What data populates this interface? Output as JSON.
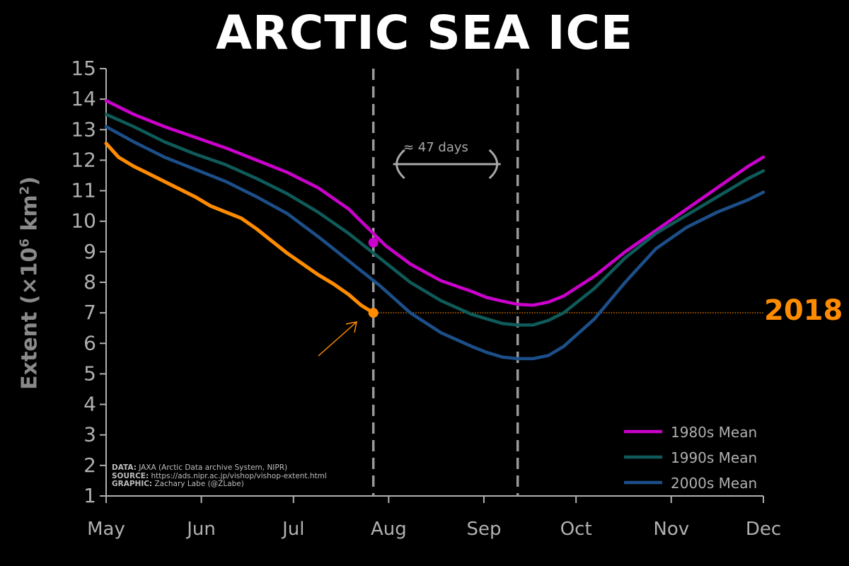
{
  "title": "ARCTIC SEA ICE",
  "chart_data": {
    "type": "line",
    "xlabel": "",
    "ylabel_text": "Extent (",
    "ylabel_unit": "×10",
    "ylabel_exp": "6",
    "ylabel_unit2": " km",
    "ylabel_exp2": "2",
    "ylabel_close": ")",
    "ylim": [
      1,
      15
    ],
    "yticks": [
      1,
      2,
      3,
      4,
      5,
      6,
      7,
      8,
      9,
      10,
      11,
      12,
      13,
      14,
      15
    ],
    "months": [
      "May",
      "Jun",
      "Jul",
      "Aug",
      "Sep",
      "Oct",
      "Nov",
      "Dec"
    ],
    "x_unit": "day of year",
    "xlim": [
      121,
      335
    ],
    "month_starts": [
      121,
      152,
      182,
      213,
      244,
      274,
      305,
      335
    ],
    "series": [
      {
        "name": "1980s Mean",
        "color": "#cc00cc",
        "x": [
          121,
          130,
          140,
          150,
          160,
          170,
          180,
          190,
          200,
          206,
          212,
          220,
          230,
          240,
          245,
          250,
          255,
          260,
          265,
          270,
          280,
          290,
          300,
          310,
          320,
          330,
          335
        ],
        "y": [
          13.95,
          13.5,
          13.1,
          12.75,
          12.4,
          12.0,
          11.6,
          11.1,
          10.4,
          9.8,
          9.2,
          8.6,
          8.05,
          7.7,
          7.5,
          7.38,
          7.28,
          7.25,
          7.35,
          7.55,
          8.2,
          9.0,
          9.7,
          10.4,
          11.1,
          11.8,
          12.1
        ]
      },
      {
        "name": "1990s Mean",
        "color": "#0f5b5a",
        "x": [
          121,
          130,
          140,
          150,
          160,
          170,
          180,
          190,
          200,
          210,
          220,
          230,
          240,
          245,
          250,
          255,
          260,
          265,
          270,
          280,
          290,
          300,
          310,
          320,
          330,
          335
        ],
        "y": [
          13.5,
          13.1,
          12.6,
          12.2,
          11.85,
          11.4,
          10.9,
          10.3,
          9.6,
          8.8,
          8.0,
          7.4,
          6.95,
          6.8,
          6.65,
          6.6,
          6.6,
          6.75,
          7.0,
          7.8,
          8.8,
          9.6,
          10.2,
          10.8,
          11.4,
          11.65
        ]
      },
      {
        "name": "2000s Mean",
        "color": "#1c4f8a",
        "x": [
          121,
          130,
          140,
          150,
          160,
          170,
          180,
          190,
          200,
          210,
          220,
          230,
          240,
          245,
          250,
          255,
          260,
          265,
          270,
          280,
          290,
          300,
          310,
          320,
          330,
          335
        ],
        "y": [
          13.1,
          12.6,
          12.1,
          11.7,
          11.3,
          10.8,
          10.25,
          9.5,
          8.7,
          7.9,
          7.0,
          6.35,
          5.9,
          5.7,
          5.55,
          5.5,
          5.5,
          5.6,
          5.9,
          6.8,
          8.0,
          9.1,
          9.8,
          10.3,
          10.7,
          10.95
        ]
      },
      {
        "name": "2018",
        "color": "#ff8c00",
        "x": [
          121,
          125,
          130,
          135,
          140,
          145,
          150,
          155,
          160,
          165,
          170,
          175,
          180,
          185,
          190,
          195,
          200,
          204,
          208
        ],
        "y": [
          12.55,
          12.1,
          11.8,
          11.55,
          11.3,
          11.05,
          10.8,
          10.5,
          10.3,
          10.1,
          9.75,
          9.35,
          8.95,
          8.6,
          8.25,
          7.95,
          7.6,
          7.25,
          7.0
        ]
      }
    ],
    "markers": [
      {
        "series": "1980s Mean",
        "x": 208,
        "y": 9.3
      },
      {
        "series": "2018",
        "x": 208,
        "y": 7.0
      }
    ],
    "reference_line": {
      "y": 7.0,
      "color": "#ff8c00"
    },
    "vlines_x": [
      208,
      255
    ],
    "legend_placement": "bottom-right",
    "year_label": "2018",
    "gap_label": "≈ 47 days"
  },
  "credits": {
    "data_key": "DATA:",
    "data_val": " JAXA (Arctic Data archive System, NIPR)",
    "source_key": "SOURCE:",
    "source_val": " https://ads.nipr.ac.jp/vishop/vishop-extent.html",
    "graphic_key": "GRAPHIC:",
    "graphic_val": " Zachary Labe (@ZLabe)"
  },
  "colors": {
    "background": "#000000",
    "axis": "#b0b0b0",
    "accent": "#ff8c00"
  }
}
